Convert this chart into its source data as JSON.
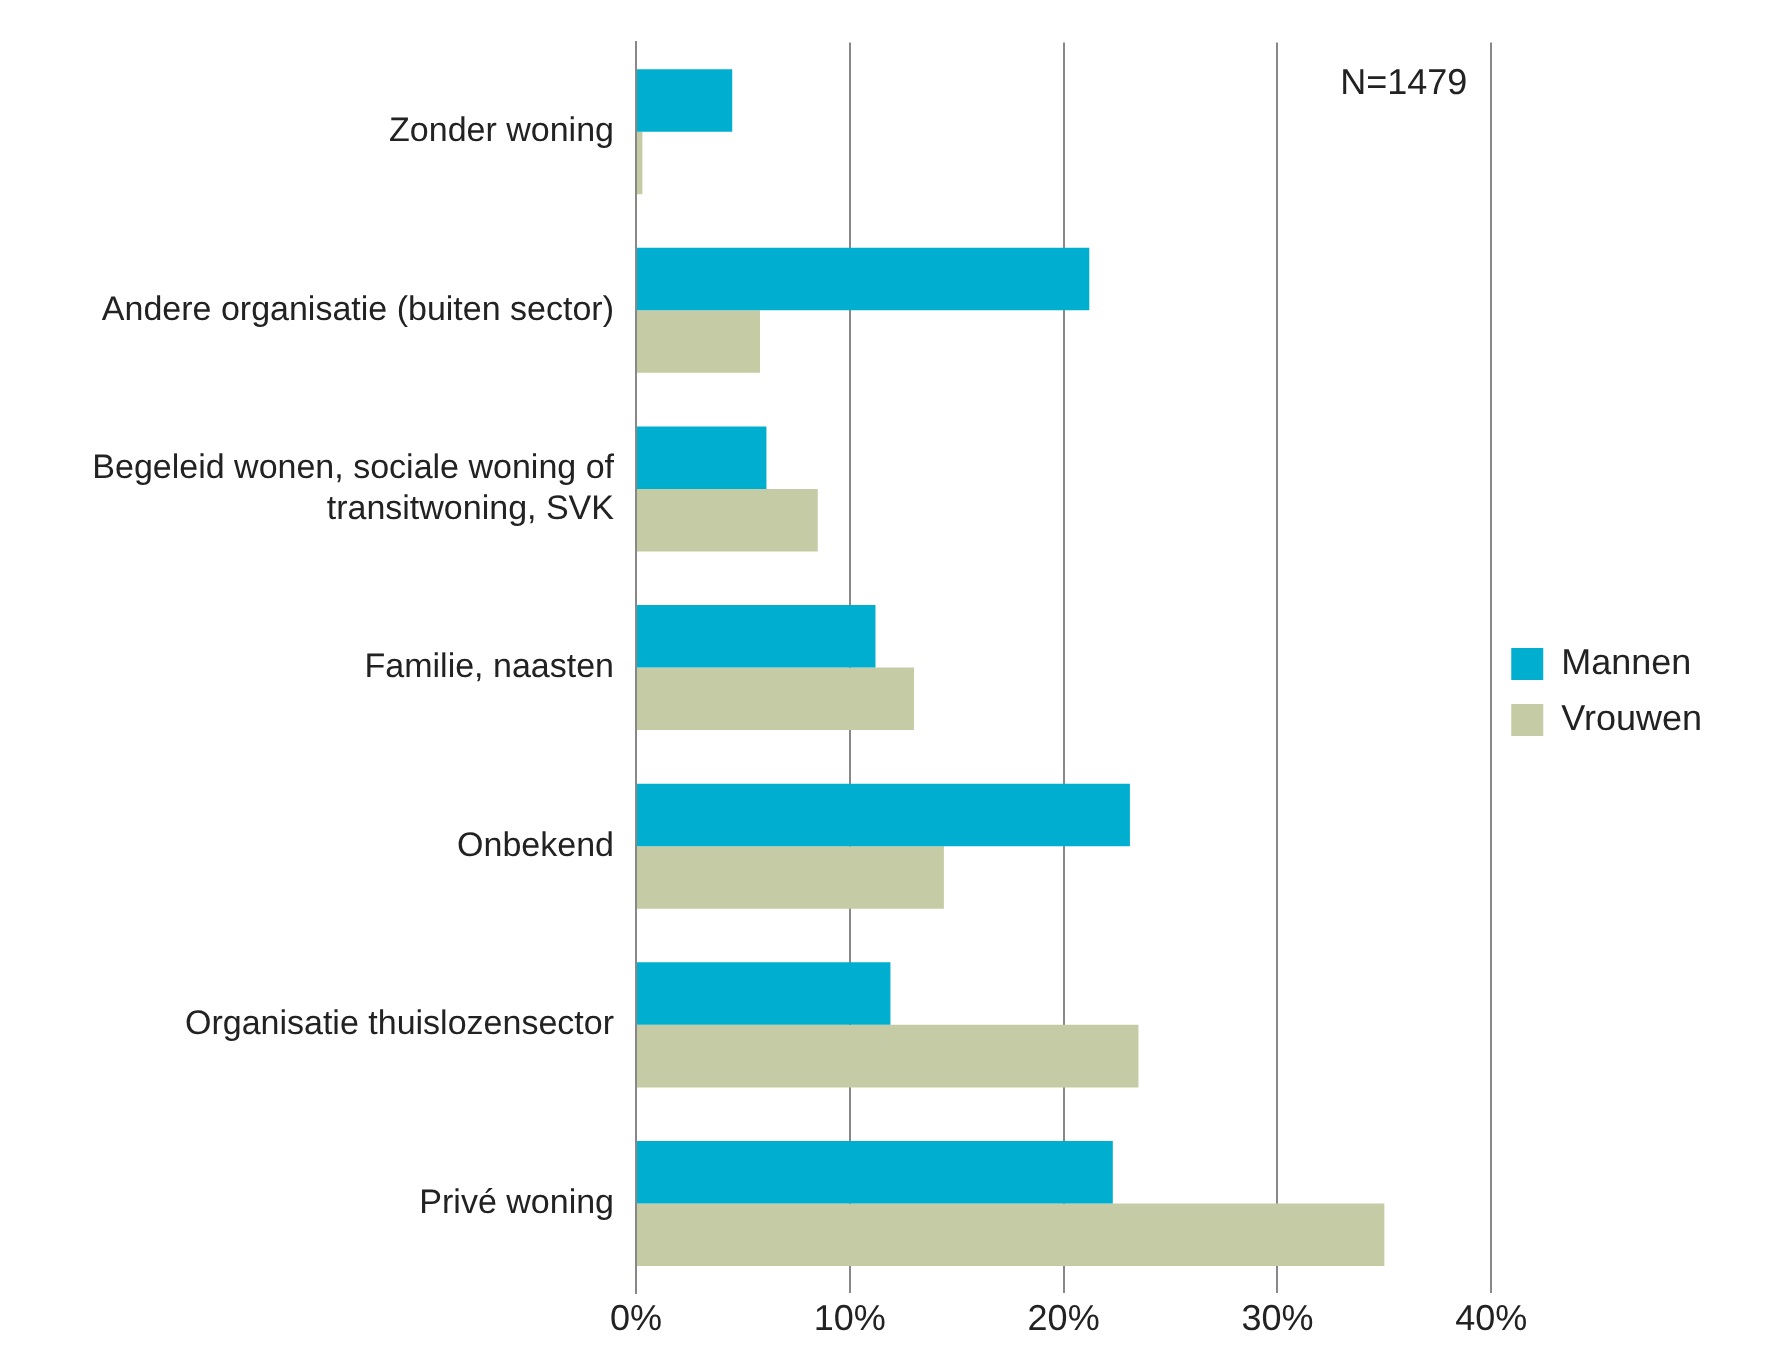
{
  "chart_data": {
    "type": "bar",
    "orientation": "horizontal",
    "categories": [
      "Zonder woning",
      "Andere organisatie (buiten sector)",
      "Begeleid wonen, sociale woning of transitwoning, SVK",
      "Familie, naasten",
      "Onbekend",
      "Organisatie thuislozensector",
      "Privé woning"
    ],
    "series": [
      {
        "name": "Mannen",
        "color": "#00afd0",
        "values": [
          4.5,
          21.2,
          6.1,
          11.2,
          23.1,
          11.9,
          22.3
        ]
      },
      {
        "name": "Vrouwen",
        "color": "#c5cba5",
        "values": [
          0.3,
          5.8,
          8.5,
          13.0,
          14.4,
          23.5,
          35.0
        ]
      }
    ],
    "xlim": [
      0,
      40
    ],
    "xticks": [
      {
        "value": 0,
        "label": "0%"
      },
      {
        "value": 10,
        "label": "10%"
      },
      {
        "value": 20,
        "label": "20%"
      },
      {
        "value": 30,
        "label": "30%"
      },
      {
        "value": 40,
        "label": "40%"
      }
    ],
    "grid": "x",
    "legend": "right",
    "annotations": [
      "N=1479"
    ]
  }
}
